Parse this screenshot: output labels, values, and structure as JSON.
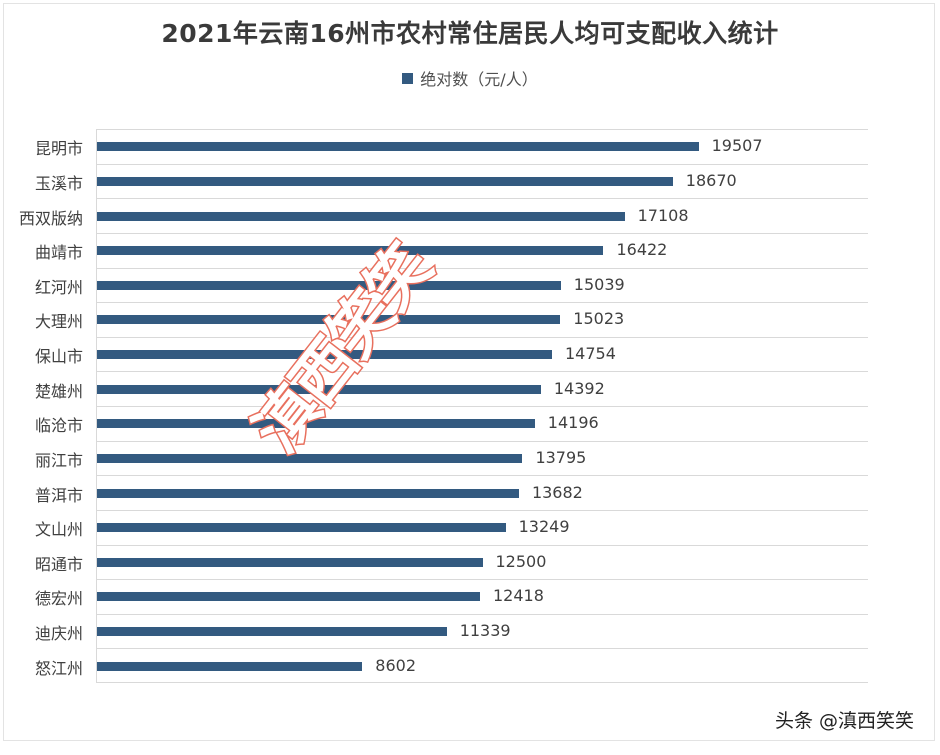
{
  "title": "2021年云南16州市农村常住居民人均可支配收入统计",
  "legend": {
    "label": "绝对数（元/人）",
    "color": "#335a80"
  },
  "watermark": "滇西笑笑",
  "source": "头条 @滇西笑笑",
  "chart_data": {
    "type": "bar",
    "orientation": "horizontal",
    "title": "2021年云南16州市农村常住居民人均可支配收入统计",
    "xlabel": "",
    "ylabel": "",
    "xlim": [
      0,
      25000
    ],
    "grid": true,
    "legend_position": "top",
    "bar_color": "#335a80",
    "categories": [
      "昆明市",
      "玉溪市",
      "西双版纳",
      "曲靖市",
      "红河州",
      "大理州",
      "保山市",
      "楚雄州",
      "临沧市",
      "丽江市",
      "普洱市",
      "文山州",
      "昭通市",
      "德宏州",
      "迪庆州",
      "怒江州"
    ],
    "series": [
      {
        "name": "绝对数（元/人）",
        "values": [
          19507,
          18670,
          17108,
          16422,
          15039,
          15023,
          14754,
          14392,
          14196,
          13795,
          13682,
          13249,
          12500,
          12418,
          11339,
          8602
        ]
      }
    ]
  }
}
